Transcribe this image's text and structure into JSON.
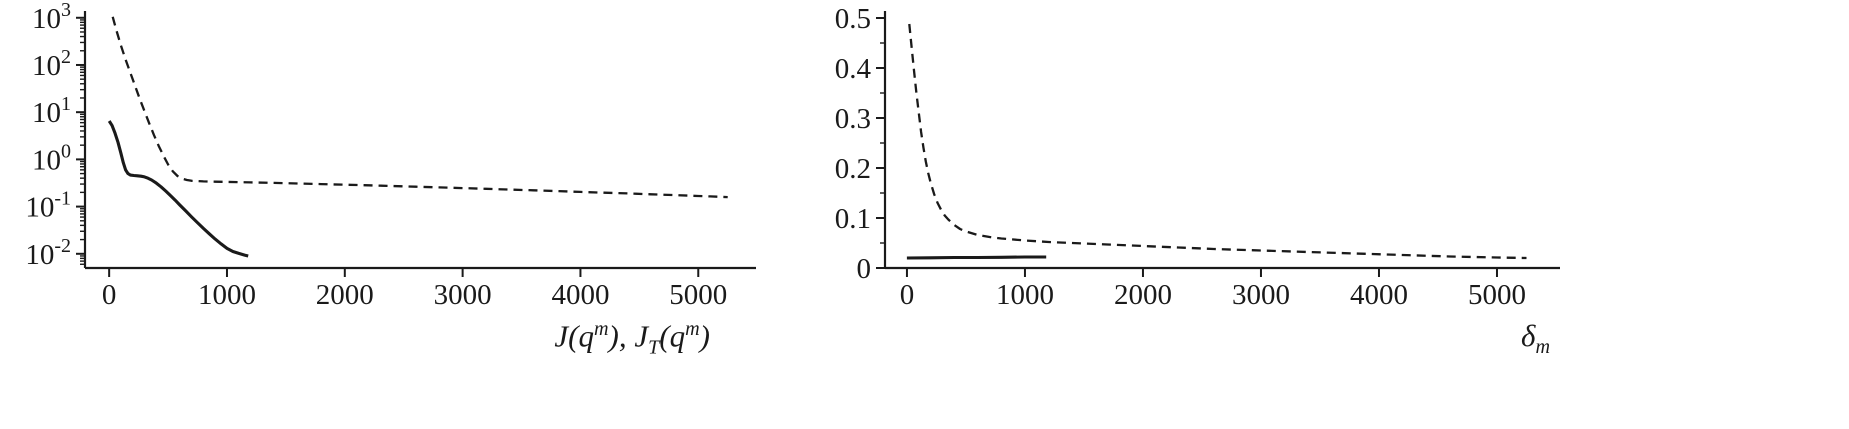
{
  "figure": {
    "background": "#ffffff",
    "line_color": "#1a1a1a"
  },
  "chart_data": [
    {
      "type": "line",
      "title": "",
      "xlabel": "J(q^m), J_T(q^m)",
      "ylabel": "",
      "x_scale": "linear",
      "y_scale": "log",
      "xlim": [
        -205,
        5490
      ],
      "ylim": [
        0.005,
        1202
      ],
      "grid": false,
      "legend": "none",
      "x_ticks": [
        {
          "value": 0,
          "label": "0"
        },
        {
          "value": 1000,
          "label": "1000"
        },
        {
          "value": 2000,
          "label": "2000"
        },
        {
          "value": 3000,
          "label": "3000"
        },
        {
          "value": 4000,
          "label": "4000"
        },
        {
          "value": 5000,
          "label": "5000"
        }
      ],
      "y_ticks": [
        {
          "value": 0.01,
          "label": "10^-2"
        },
        {
          "value": 0.1,
          "label": "10^-1"
        },
        {
          "value": 1,
          "label": "10^0"
        },
        {
          "value": 10,
          "label": "10^1"
        },
        {
          "value": 100,
          "label": "10^2"
        },
        {
          "value": 1000,
          "label": "10^3"
        }
      ],
      "y_minor": "log",
      "series": [
        {
          "name": "J_T(q^m)",
          "line_style": "dashed",
          "color": "#1a1a1a",
          "points": [
            [
              30,
              1050
            ],
            [
              60,
              560
            ],
            [
              100,
              260
            ],
            [
              140,
              130
            ],
            [
              180,
              68
            ],
            [
              220,
              36
            ],
            [
              260,
              19
            ],
            [
              300,
              10.5
            ],
            [
              340,
              5.8
            ],
            [
              380,
              3.3
            ],
            [
              420,
              1.95
            ],
            [
              460,
              1.2
            ],
            [
              500,
              0.78
            ],
            [
              540,
              0.56
            ],
            [
              580,
              0.445
            ],
            [
              620,
              0.39
            ],
            [
              660,
              0.365
            ],
            [
              700,
              0.352
            ],
            [
              800,
              0.342
            ],
            [
              900,
              0.337
            ],
            [
              1000,
              0.333
            ],
            [
              1200,
              0.325
            ],
            [
              1400,
              0.317
            ],
            [
              1600,
              0.308
            ],
            [
              1800,
              0.3
            ],
            [
              2000,
              0.291
            ],
            [
              2200,
              0.282
            ],
            [
              2400,
              0.273
            ],
            [
              2600,
              0.264
            ],
            [
              2800,
              0.255
            ],
            [
              3000,
              0.246
            ],
            [
              3200,
              0.238
            ],
            [
              3400,
              0.229
            ],
            [
              3600,
              0.221
            ],
            [
              3800,
              0.213
            ],
            [
              4000,
              0.205
            ],
            [
              4200,
              0.197
            ],
            [
              4400,
              0.19
            ],
            [
              4600,
              0.182
            ],
            [
              4800,
              0.175
            ],
            [
              5000,
              0.168
            ],
            [
              5100,
              0.164
            ],
            [
              5250,
              0.159
            ]
          ]
        },
        {
          "name": "J(q^m)",
          "line_style": "solid",
          "color": "#1a1a1a",
          "points": [
            [
              0,
              6.5
            ],
            [
              25,
              5.2
            ],
            [
              50,
              3.6
            ],
            [
              75,
              2.3
            ],
            [
              100,
              1.35
            ],
            [
              120,
              0.85
            ],
            [
              140,
              0.6
            ],
            [
              160,
              0.5
            ],
            [
              180,
              0.465
            ],
            [
              210,
              0.455
            ],
            [
              240,
              0.45
            ],
            [
              270,
              0.44
            ],
            [
              300,
              0.425
            ],
            [
              330,
              0.4
            ],
            [
              360,
              0.365
            ],
            [
              400,
              0.315
            ],
            [
              440,
              0.262
            ],
            [
              480,
              0.214
            ],
            [
              520,
              0.172
            ],
            [
              560,
              0.137
            ],
            [
              600,
              0.108
            ],
            [
              650,
              0.081
            ],
            [
              700,
              0.0605
            ],
            [
              750,
              0.0455
            ],
            [
              800,
              0.0345
            ],
            [
              850,
              0.0265
            ],
            [
              900,
              0.0205
            ],
            [
              950,
              0.0162
            ],
            [
              1000,
              0.013
            ],
            [
              1050,
              0.0112
            ],
            [
              1100,
              0.0102
            ],
            [
              1150,
              0.0094
            ],
            [
              1180,
              0.009
            ]
          ]
        }
      ]
    },
    {
      "type": "line",
      "title": "",
      "xlabel": "δ_m",
      "ylabel": "",
      "x_scale": "linear",
      "y_scale": "linear",
      "xlim": [
        -186,
        5534
      ],
      "ylim": [
        0,
        0.512
      ],
      "grid": false,
      "legend": "none",
      "x_ticks": [
        {
          "value": 0,
          "label": "0"
        },
        {
          "value": 1000,
          "label": "1000"
        },
        {
          "value": 2000,
          "label": "2000"
        },
        {
          "value": 3000,
          "label": "3000"
        },
        {
          "value": 4000,
          "label": "4000"
        },
        {
          "value": 5000,
          "label": "5000"
        }
      ],
      "y_ticks": [
        {
          "value": 0,
          "label": "0"
        },
        {
          "value": 0.1,
          "label": "0.1"
        },
        {
          "value": 0.2,
          "label": "0.2"
        },
        {
          "value": 0.3,
          "label": "0.3"
        },
        {
          "value": 0.4,
          "label": "0.4"
        },
        {
          "value": 0.5,
          "label": "0.5"
        }
      ],
      "y_minor_step": 0.05,
      "series": [
        {
          "name": "delta_m dashed",
          "line_style": "dashed",
          "color": "#1a1a1a",
          "points": [
            [
              20,
              0.488
            ],
            [
              40,
              0.44
            ],
            [
              60,
              0.395
            ],
            [
              80,
              0.35
            ],
            [
              100,
              0.31
            ],
            [
              120,
              0.272
            ],
            [
              140,
              0.24
            ],
            [
              160,
              0.213
            ],
            [
              180,
              0.19
            ],
            [
              200,
              0.171
            ],
            [
              230,
              0.148
            ],
            [
              260,
              0.13
            ],
            [
              290,
              0.116
            ],
            [
              320,
              0.105
            ],
            [
              350,
              0.097
            ],
            [
              400,
              0.086
            ],
            [
              450,
              0.078
            ],
            [
              500,
              0.073
            ],
            [
              600,
              0.066
            ],
            [
              700,
              0.062
            ],
            [
              800,
              0.059
            ],
            [
              1000,
              0.055
            ],
            [
              1200,
              0.052
            ],
            [
              1400,
              0.05
            ],
            [
              1700,
              0.047
            ],
            [
              2000,
              0.044
            ],
            [
              2300,
              0.041
            ],
            [
              2600,
              0.038
            ],
            [
              3000,
              0.035
            ],
            [
              3400,
              0.032
            ],
            [
              3800,
              0.029
            ],
            [
              4200,
              0.026
            ],
            [
              4600,
              0.023
            ],
            [
              5000,
              0.021
            ],
            [
              5250,
              0.02
            ]
          ]
        },
        {
          "name": "delta_m solid",
          "line_style": "solid",
          "color": "#1a1a1a",
          "points": [
            [
              0,
              0.02
            ],
            [
              200,
              0.0205
            ],
            [
              400,
              0.021
            ],
            [
              600,
              0.021
            ],
            [
              800,
              0.0215
            ],
            [
              1000,
              0.022
            ],
            [
              1180,
              0.022
            ]
          ]
        }
      ]
    }
  ]
}
